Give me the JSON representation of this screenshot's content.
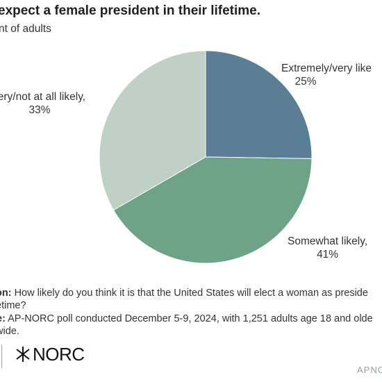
{
  "chart_data": {
    "type": "pie",
    "title": "expect a female president in their lifetime.",
    "subtitle": "nt of adults",
    "slices": [
      {
        "label": "Extremely/very like",
        "value": 25,
        "display": "25%",
        "color": "#5a7f95"
      },
      {
        "label": "Somewhat likely,",
        "value": 41,
        "display": "41%",
        "color": "#6fa388"
      },
      {
        "label": "very/not at all likely,",
        "value": 33,
        "display": "33%",
        "color": "#bfd0c6"
      }
    ]
  },
  "notes": {
    "question_key": "on:",
    "question_line1": "How likely do you think it is that the United States will elect a woman as preside",
    "question_line2": "etime?",
    "source_key": "e:",
    "source_line1": "AP-NORC poll conducted December 5-9, 2024, with 1,251 adults age 18 and olde",
    "source_line2": "wide."
  },
  "footer": {
    "logo_text": "NORC",
    "tag": "APNO"
  }
}
